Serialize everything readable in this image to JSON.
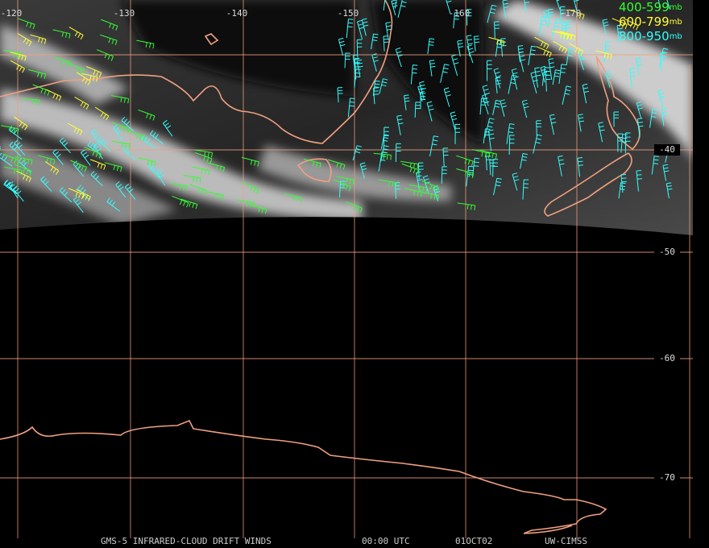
{
  "map": {
    "longitude_labels": [
      "-120",
      "-130",
      "-140",
      "-150",
      "-160",
      "-170"
    ],
    "latitude_labels": [
      "-40",
      "-50",
      "-60",
      "-70"
    ],
    "legend": [
      {
        "range": "400-599",
        "unit": "mb"
      },
      {
        "range": "600-799",
        "unit": "mb"
      },
      {
        "range": "800-950",
        "unit": "mb"
      }
    ],
    "footer": {
      "product": "GMS-5 INFRARED-CLOUD DRIFT WINDS",
      "time": "00:00 UTC",
      "date": "01OCT02",
      "source": "UW-CIMSS"
    }
  }
}
